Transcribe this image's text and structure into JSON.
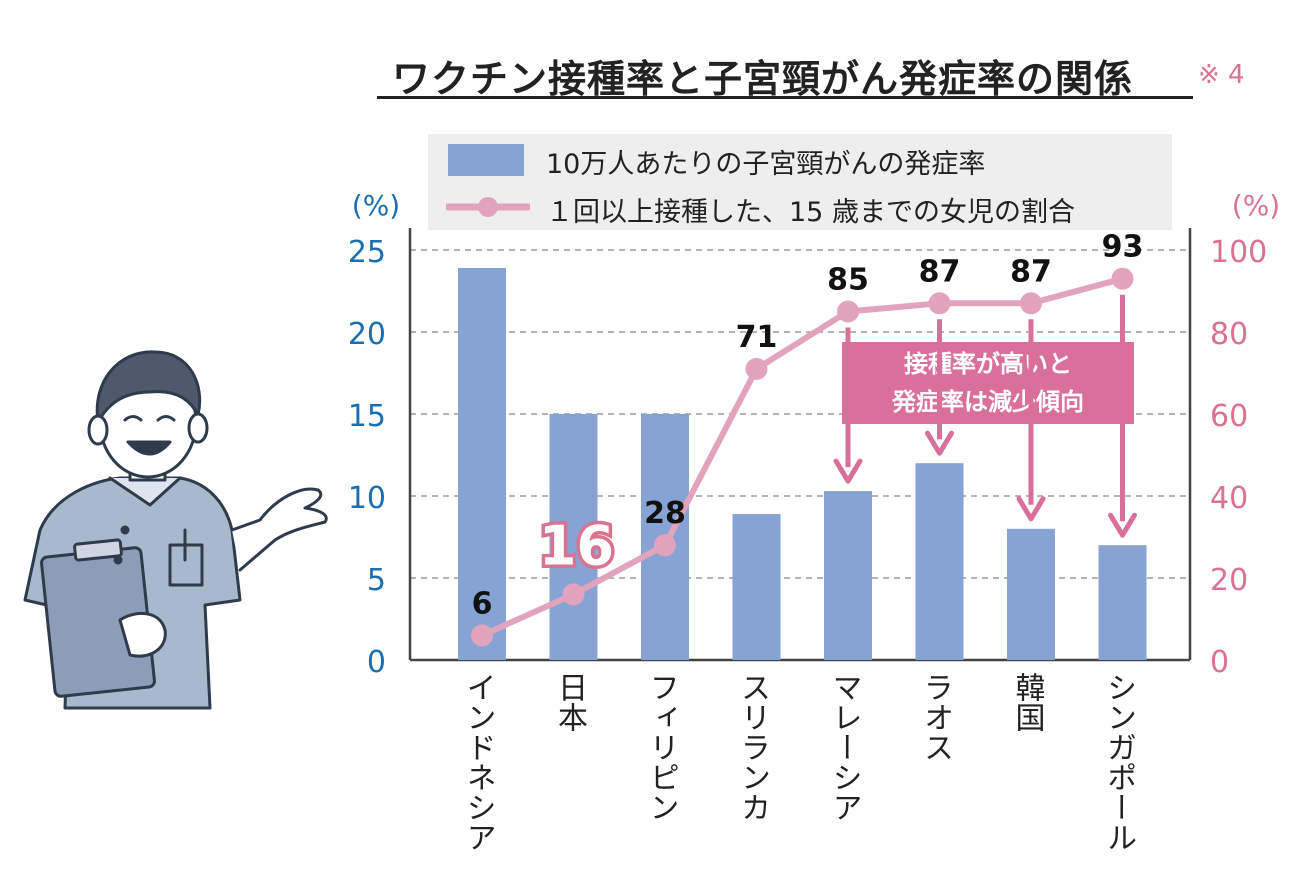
{
  "title": "ワクチン接種率と子宮頸がん発症率の関係",
  "note": "※ 4",
  "colors": {
    "bar": "#86a3d4",
    "line": "#e2a3bc",
    "left_axis": "#1b6fb0",
    "right_axis": "#d9738f",
    "callout_bg": "#d9709b",
    "arrow": "#d9709b"
  },
  "legend": {
    "bar_label": "10万人あたりの子宮頸がんの発症率",
    "line_label": "１回以上接種した、15 歳までの女児の割合"
  },
  "callout": {
    "line1": "接種率が高いと",
    "line2": "発症率は減少傾向"
  },
  "chart_data": {
    "type": "bar",
    "categories": [
      "インドネシア",
      "日本",
      "フィリピン",
      "スリランカ",
      "マレーシア",
      "ラオス",
      "韓国",
      "シンガポール"
    ],
    "left_axis": {
      "unit": "(%)",
      "ylim": [
        0,
        25
      ],
      "ticks": [
        0,
        5,
        10,
        15,
        20,
        25
      ]
    },
    "right_axis": {
      "unit": "(%)",
      "ylim": [
        0,
        100
      ],
      "ticks": [
        0,
        20,
        40,
        60,
        80,
        100
      ]
    },
    "grid": true,
    "legend_position": "top",
    "series": [
      {
        "name": "10万人あたりの子宮頸がんの発症率",
        "type": "bar",
        "axis": "left",
        "values": [
          23.9,
          15.0,
          15.0,
          8.9,
          10.3,
          12.0,
          8.0,
          7.0
        ]
      },
      {
        "name": "１回以上接種した、15 歳までの女児の割合",
        "type": "line",
        "axis": "right",
        "values": [
          6,
          16,
          28,
          71,
          85,
          87,
          87,
          93
        ],
        "labels": [
          "6",
          "16",
          "28",
          "71",
          "85",
          "87",
          "87",
          "93"
        ]
      }
    ],
    "arrows_to_categories": [
      "マレーシア",
      "ラオス",
      "韓国",
      "シンガポール"
    ]
  }
}
